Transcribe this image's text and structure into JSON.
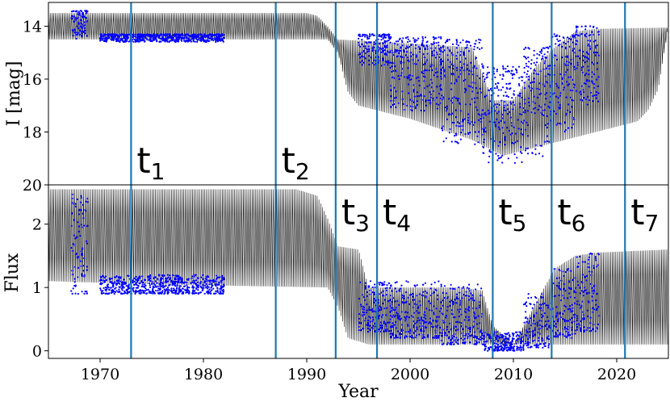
{
  "chart_data": [
    {
      "type": "line",
      "panel": "top",
      "ylabel": "I [mag]",
      "y_inverted": true,
      "xlim": [
        1965,
        2025
      ],
      "ylim": [
        20,
        13.1
      ],
      "yticks": [
        14,
        16,
        18,
        20
      ],
      "grid": false,
      "series": [
        {
          "role": "model-envelope",
          "color": "#000000",
          "upper": [
            [
              1965,
              13.5
            ],
            [
              1990,
              13.5
            ],
            [
              1991,
              13.6
            ],
            [
              1992,
              14.0
            ],
            [
              1993,
              14.5
            ],
            [
              1998,
              14.6
            ],
            [
              2006,
              14.8
            ],
            [
              2008,
              16.8
            ],
            [
              2010,
              16.8
            ],
            [
              2012,
              15.6
            ],
            [
              2014,
              14.8
            ],
            [
              2016,
              14.2
            ],
            [
              2018,
              14.1
            ],
            [
              2025,
              14.05
            ]
          ],
          "lower": [
            [
              1965,
              14.5
            ],
            [
              1992,
              14.5
            ],
            [
              1993,
              15.0
            ],
            [
              1994,
              16.5
            ],
            [
              1995,
              17.0
            ],
            [
              2000,
              17.5
            ],
            [
              2006,
              18.3
            ],
            [
              2009,
              18.9
            ],
            [
              2012,
              18.6
            ],
            [
              2018,
              18.0
            ],
            [
              2022,
              17.6
            ],
            [
              2023,
              17.2
            ],
            [
              2024,
              16.4
            ],
            [
              2025,
              14.05
            ]
          ]
        },
        {
          "role": "observations",
          "color": "#0000ff",
          "clusters": [
            [
              1967.2,
              1968.8,
              13.4,
              14.5
            ],
            [
              1970,
              1982,
              14.3,
              14.6
            ],
            [
              1995,
              1998,
              14.3,
              15.5
            ],
            [
              1998,
              2003,
              14.4,
              17.2
            ],
            [
              2003,
              2007,
              14.5,
              18.5
            ],
            [
              2007,
              2011,
              15.5,
              19.2
            ],
            [
              2011,
              2013.5,
              14.8,
              19.0
            ],
            [
              2013.5,
              2016,
              14.3,
              18.0
            ],
            [
              2016,
              2018.3,
              14.0,
              17.0
            ]
          ]
        }
      ]
    },
    {
      "type": "line",
      "panel": "bottom",
      "xlabel": "Year",
      "ylabel": "Flux",
      "xlim": [
        1965,
        2025
      ],
      "ylim": [
        -0.12,
        2.62
      ],
      "xticks": [
        1970,
        1980,
        1990,
        2000,
        2010,
        2020
      ],
      "yticks": [
        0,
        1,
        2
      ],
      "grid": false,
      "series": [
        {
          "role": "model-envelope",
          "color": "#000000",
          "upper": [
            [
              1965,
              2.55
            ],
            [
              1989,
              2.55
            ],
            [
              1991,
              2.45
            ],
            [
              1992,
              2.1
            ],
            [
              1993,
              1.65
            ],
            [
              1995,
              1.6
            ],
            [
              1996,
              1.0
            ],
            [
              2005,
              1.0
            ],
            [
              2007,
              0.95
            ],
            [
              2008,
              0.4
            ],
            [
              2010,
              0.1
            ],
            [
              2012,
              0.7
            ],
            [
              2014,
              1.3
            ],
            [
              2016,
              1.5
            ],
            [
              2018,
              1.55
            ],
            [
              2025,
              1.6
            ]
          ],
          "lower": [
            [
              1965,
              1.1
            ],
            [
              1975,
              1.05
            ],
            [
              1985,
              1.02
            ],
            [
              1992,
              1.0
            ],
            [
              1993,
              0.7
            ],
            [
              1994,
              0.2
            ],
            [
              1996,
              0.1
            ],
            [
              2010,
              0.1
            ],
            [
              2025,
              0.1
            ]
          ]
        },
        {
          "role": "observations",
          "color": "#0000ff",
          "clusters": [
            [
              1967.2,
              1968.8,
              0.9,
              2.5
            ],
            [
              1970,
              1982,
              0.9,
              1.2
            ],
            [
              1995,
              1998,
              0.3,
              1.1
            ],
            [
              1998,
              2003,
              0.2,
              1.1
            ],
            [
              2003,
              2007,
              0.1,
              1.05
            ],
            [
              2007,
              2011,
              0.0,
              0.3
            ],
            [
              2011,
              2013.5,
              0.05,
              0.9
            ],
            [
              2013.5,
              2016,
              0.2,
              1.3
            ],
            [
              2016,
              2018.3,
              0.3,
              1.55
            ]
          ]
        }
      ]
    }
  ],
  "epochs": [
    {
      "label": "t",
      "sub": "1",
      "year": 1973.0
    },
    {
      "label": "t",
      "sub": "2",
      "year": 1987.0
    },
    {
      "label": "t",
      "sub": "3",
      "year": 1992.8
    },
    {
      "label": "t",
      "sub": "4",
      "year": 1996.8
    },
    {
      "label": "t",
      "sub": "5",
      "year": 2008.0
    },
    {
      "label": "t",
      "sub": "6",
      "year": 2013.7
    },
    {
      "label": "t",
      "sub": "7",
      "year": 2020.8
    }
  ],
  "epoch_line_color": "#1f77b4"
}
